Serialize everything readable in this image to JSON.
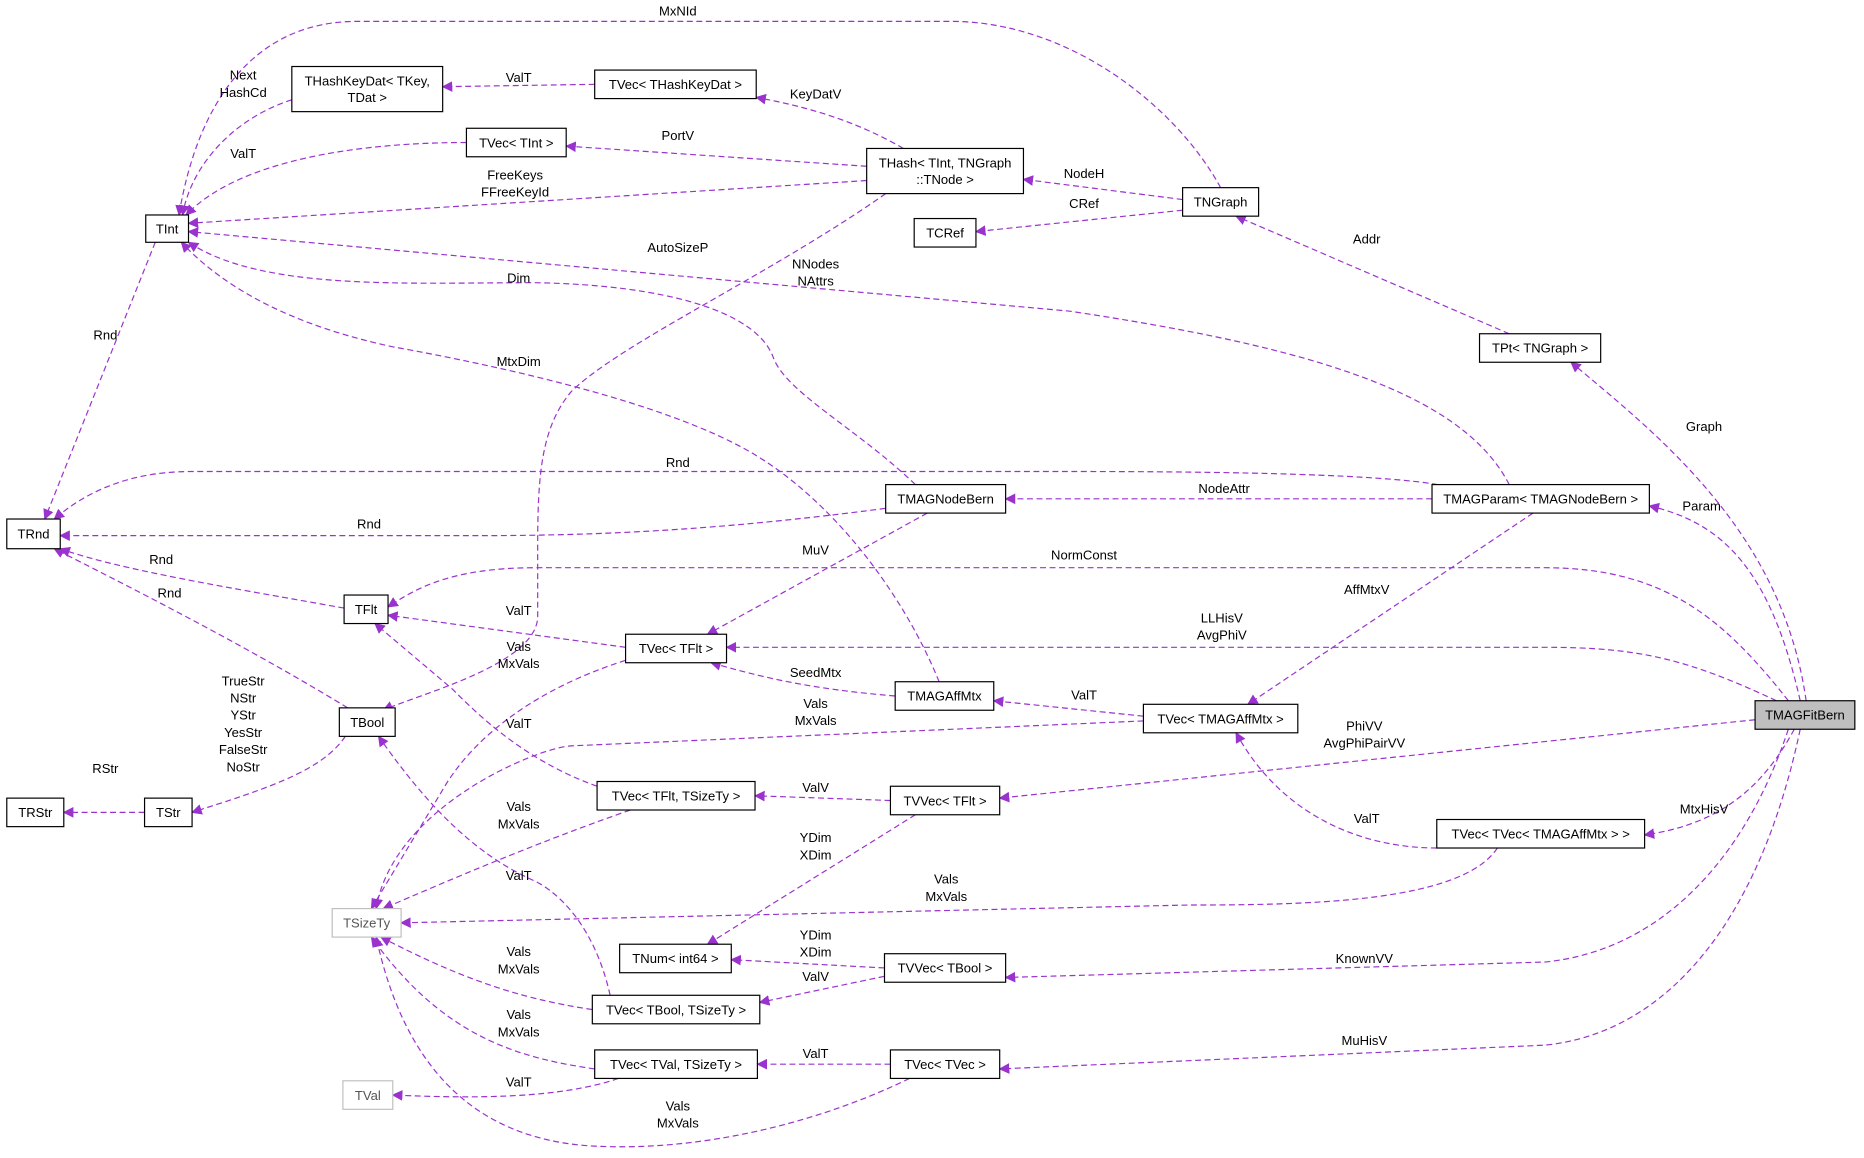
{
  "diagram": {
    "edge_color": "#9a32cd",
    "focus_fill": "#bfbfbf",
    "nodes": [
      {
        "id": "TRnd",
        "lines": [
          "TRnd"
        ]
      },
      {
        "id": "TInt",
        "lines": [
          "TInt"
        ]
      },
      {
        "id": "THashKeyDat",
        "lines": [
          "THashKeyDat< TKey,",
          "TDat >"
        ]
      },
      {
        "id": "TVecTHashKeyDat",
        "lines": [
          "TVec< THashKeyDat >"
        ]
      },
      {
        "id": "TVecTInt",
        "lines": [
          "TVec< TInt >"
        ]
      },
      {
        "id": "THash",
        "lines": [
          "THash< TInt, TNGraph",
          "::TNode >"
        ]
      },
      {
        "id": "TCRef",
        "lines": [
          "TCRef"
        ]
      },
      {
        "id": "TNGraph",
        "lines": [
          "TNGraph"
        ]
      },
      {
        "id": "TPt",
        "lines": [
          "TPt< TNGraph >"
        ]
      },
      {
        "id": "TMAGParam",
        "lines": [
          "TMAGParam< TMAGNodeBern >"
        ]
      },
      {
        "id": "TMAGNodeBern",
        "lines": [
          "TMAGNodeBern"
        ]
      },
      {
        "id": "TFlt",
        "lines": [
          "TFlt"
        ]
      },
      {
        "id": "TVecTFlt",
        "lines": [
          "TVec< TFlt >"
        ]
      },
      {
        "id": "TMAGAffMtx",
        "lines": [
          "TMAGAffMtx"
        ]
      },
      {
        "id": "TVecTMAGAffMtx",
        "lines": [
          "TVec< TMAGAffMtx >"
        ]
      },
      {
        "id": "TMAGFitBern",
        "lines": [
          "TMAGFitBern"
        ],
        "focus": true
      },
      {
        "id": "TBool",
        "lines": [
          "TBool"
        ]
      },
      {
        "id": "TRStr",
        "lines": [
          "TRStr"
        ]
      },
      {
        "id": "TStr",
        "lines": [
          "TStr"
        ]
      },
      {
        "id": "TVecTFltTSizeTy",
        "lines": [
          "TVec< TFlt, TSizeTy >"
        ]
      },
      {
        "id": "TVVecTFlt",
        "lines": [
          "TVVec< TFlt >"
        ]
      },
      {
        "id": "TVecTVecTMAGAffMtx",
        "lines": [
          "TVec< TVec< TMAGAffMtx > >"
        ]
      },
      {
        "id": "TSizeTy",
        "lines": [
          "TSizeTy"
        ],
        "gray": true
      },
      {
        "id": "TNumInt64",
        "lines": [
          "TNum< int64 >"
        ]
      },
      {
        "id": "TVVecTBool",
        "lines": [
          "TVVec< TBool >"
        ]
      },
      {
        "id": "TVecTBoolTSizeTy",
        "lines": [
          "TVec< TBool, TSizeTy >"
        ]
      },
      {
        "id": "TVecTValTSizeTy",
        "lines": [
          "TVec< TVal, TSizeTy >"
        ]
      },
      {
        "id": "TVecTVec",
        "lines": [
          "TVec< TVec >"
        ]
      },
      {
        "id": "TVal",
        "lines": [
          "TVal"
        ],
        "gray": true
      }
    ],
    "edges": [
      {
        "from": "TNGraph",
        "to": "TInt",
        "label": [
          "MxNId"
        ]
      },
      {
        "from": "THashKeyDat",
        "to": "TInt",
        "label": [
          "Next",
          "HashCd"
        ]
      },
      {
        "from": "TVecTHashKeyDat",
        "to": "THashKeyDat",
        "label": [
          "ValT"
        ]
      },
      {
        "from": "THash",
        "to": "TVecTHashKeyDat",
        "label": [
          "KeyDatV"
        ]
      },
      {
        "from": "THash",
        "to": "TVecTInt",
        "label": [
          "PortV"
        ]
      },
      {
        "from": "TVecTInt",
        "to": "TInt",
        "label": [
          "ValT"
        ]
      },
      {
        "from": "THash",
        "to": "TInt",
        "label": [
          "FreeKeys",
          "FFreeKeyId"
        ]
      },
      {
        "from": "THash",
        "to": "TBool",
        "label": [
          "AutoSizeP"
        ]
      },
      {
        "from": "TMAGParam",
        "to": "TInt",
        "label": [
          "NNodes",
          "NAttrs"
        ]
      },
      {
        "from": "TMAGNodeBern",
        "to": "TInt",
        "label": [
          "Dim"
        ]
      },
      {
        "from": "TMAGAffMtx",
        "to": "TInt",
        "label": [
          "MtxDim"
        ]
      },
      {
        "from": "TInt",
        "to": "TRnd",
        "label": [
          "Rnd"
        ]
      },
      {
        "from": "TMAGParam",
        "to": "TRnd",
        "label": [
          "Rnd"
        ]
      },
      {
        "from": "TMAGNodeBern",
        "to": "TRnd",
        "label": [
          "Rnd"
        ]
      },
      {
        "from": "TFlt",
        "to": "TRnd",
        "label": [
          "Rnd"
        ]
      },
      {
        "from": "TBool",
        "to": "TRnd",
        "label": [
          "Rnd"
        ]
      },
      {
        "from": "TMAGParam",
        "to": "TMAGNodeBern",
        "label": [
          "NodeAttr"
        ]
      },
      {
        "from": "TMAGFitBern",
        "to": "TPt",
        "label": [
          "Graph"
        ]
      },
      {
        "from": "TPt",
        "to": "TNGraph",
        "label": [
          "Addr"
        ]
      },
      {
        "from": "TNGraph",
        "to": "THash",
        "label": [
          "NodeH"
        ]
      },
      {
        "from": "TNGraph",
        "to": "TCRef",
        "label": [
          "CRef"
        ]
      },
      {
        "from": "TMAGFitBern",
        "to": "TMAGParam",
        "label": [
          "Param"
        ]
      },
      {
        "from": "TMAGFitBern",
        "to": "TFlt",
        "label": [
          "NormConst"
        ]
      },
      {
        "from": "TMAGNodeBern",
        "to": "TVecTFlt",
        "label": [
          "MuV"
        ]
      },
      {
        "from": "TMAGFitBern",
        "to": "TVecTFlt",
        "label": [
          "LLHisV",
          "AvgPhiV"
        ]
      },
      {
        "from": "TVecTFlt",
        "to": "TFlt",
        "label": [
          "ValT"
        ]
      },
      {
        "from": "TMAGAffMtx",
        "to": "TVecTFlt",
        "label": [
          "SeedMtx"
        ]
      },
      {
        "from": "TMAGParam",
        "to": "TVecTMAGAffMtx",
        "label": [
          "AffMtxV"
        ]
      },
      {
        "from": "TVecTMAGAffMtx",
        "to": "TMAGAffMtx",
        "label": [
          "ValT"
        ]
      },
      {
        "from": "TVecTFlt",
        "to": "TSizeTy",
        "label": [
          "Vals",
          "MxVals"
        ]
      },
      {
        "from": "TVecTMAGAffMtx",
        "to": "TSizeTy",
        "label": [
          "Vals",
          "MxVals"
        ]
      },
      {
        "from": "TVecTFltTSizeTy",
        "to": "TFlt",
        "label": [
          "ValT"
        ]
      },
      {
        "from": "TMAGFitBern",
        "to": "TVVecTFlt",
        "label": [
          "PhiVV",
          "AvgPhiPairVV"
        ]
      },
      {
        "from": "TVVecTFlt",
        "to": "TVecTFltTSizeTy",
        "label": [
          "ValV"
        ]
      },
      {
        "from": "TVecTFltTSizeTy",
        "to": "TSizeTy",
        "label": [
          "Vals",
          "MxVals"
        ]
      },
      {
        "from": "TMAGFitBern",
        "to": "TVecTVecTMAGAffMtx",
        "label": [
          "MtxHisV"
        ]
      },
      {
        "from": "TVecTVecTMAGAffMtx",
        "to": "TVecTMAGAffMtx",
        "label": [
          "ValT"
        ]
      },
      {
        "from": "TVVecTFlt",
        "to": "TNumInt64",
        "label": [
          "YDim",
          "XDim"
        ]
      },
      {
        "from": "TVecTBoolTSizeTy",
        "to": "TBool",
        "label": [
          "ValT"
        ]
      },
      {
        "from": "TVecTVecTMAGAffMtx",
        "to": "TSizeTy",
        "label": [
          "Vals",
          "MxVals"
        ]
      },
      {
        "from": "TMAGFitBern",
        "to": "TVVecTBool",
        "label": [
          "KnownVV"
        ]
      },
      {
        "from": "TVVecTBool",
        "to": "TNumInt64",
        "label": [
          "YDim",
          "XDim"
        ]
      },
      {
        "from": "TVVecTBool",
        "to": "TVecTBoolTSizeTy",
        "label": [
          "ValV"
        ]
      },
      {
        "from": "TVecTBoolTSizeTy",
        "to": "TSizeTy",
        "label": [
          "Vals",
          "MxVals"
        ]
      },
      {
        "from": "TMAGFitBern",
        "to": "TVecTVec",
        "label": [
          "MuHisV"
        ]
      },
      {
        "from": "TVecTVec",
        "to": "TVecTValTSizeTy",
        "label": [
          "ValT"
        ]
      },
      {
        "from": "TVecTValTSizeTy",
        "to": "TSizeTy",
        "label": [
          "Vals",
          "MxVals"
        ]
      },
      {
        "from": "TVecTValTSizeTy",
        "to": "TVal",
        "label": [
          "ValT"
        ]
      },
      {
        "from": "TVecTVec",
        "to": "TSizeTy",
        "label": [
          "Vals",
          "MxVals"
        ]
      },
      {
        "from": "TStr",
        "to": "TRStr",
        "label": [
          "RStr"
        ]
      },
      {
        "from": "TBool",
        "to": "TStr",
        "label": [
          "TrueStr",
          "NStr",
          "YStr",
          "YesStr",
          "FalseStr",
          "NoStr"
        ]
      }
    ]
  }
}
